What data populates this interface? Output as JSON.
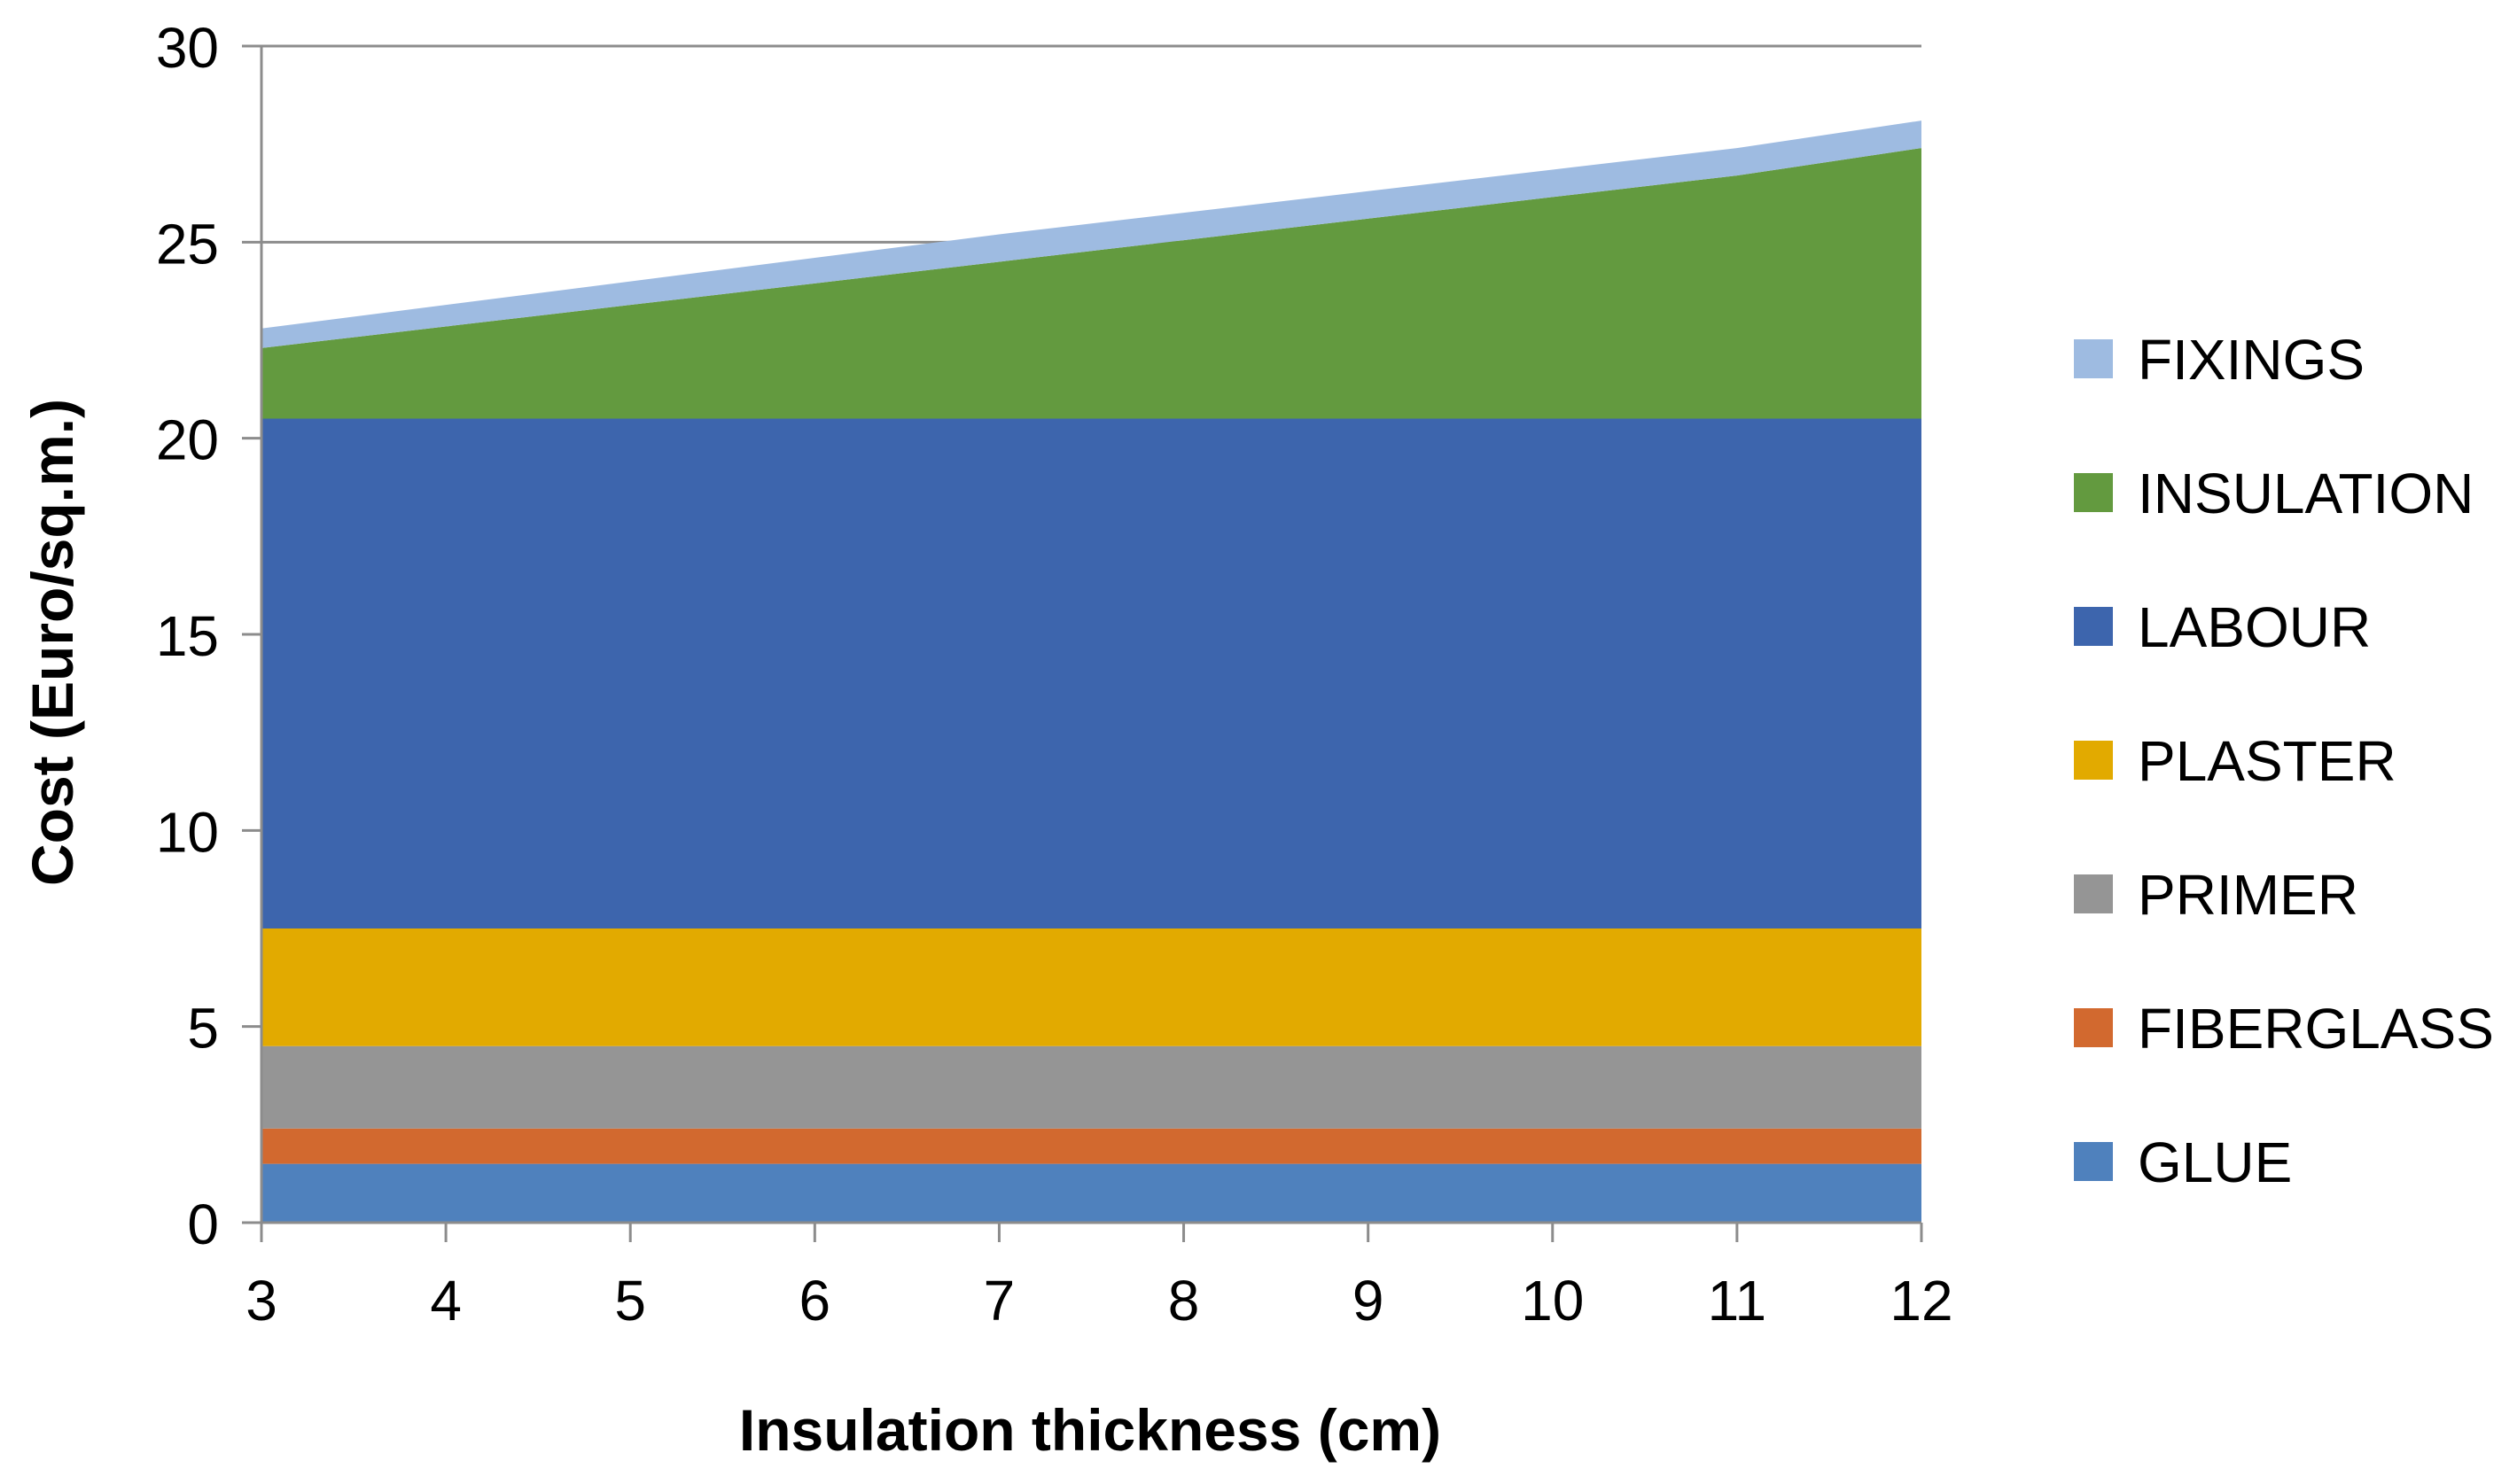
{
  "chart_data": {
    "type": "area",
    "stacked": true,
    "title": "",
    "xlabel": "Insulation thickness (cm)",
    "ylabel": "Cost (Euro/sq.m.)",
    "x": [
      3,
      4,
      5,
      6,
      7,
      8,
      9,
      10,
      11,
      12
    ],
    "xlim": [
      3,
      12
    ],
    "ylim": [
      0,
      30
    ],
    "yticks": [
      0,
      5,
      10,
      15,
      20,
      25,
      30
    ],
    "grid": "horizontal",
    "legend_position": "right",
    "series": [
      {
        "name": "GLUE",
        "color": "#4f81bd",
        "values": [
          1.5,
          1.5,
          1.5,
          1.5,
          1.5,
          1.5,
          1.5,
          1.5,
          1.5,
          1.5
        ]
      },
      {
        "name": "FIBERGLASS",
        "color": "#d2692f",
        "values": [
          0.9,
          0.9,
          0.9,
          0.9,
          0.9,
          0.9,
          0.9,
          0.9,
          0.9,
          0.9
        ]
      },
      {
        "name": "PRIMER",
        "color": "#959595",
        "values": [
          2.1,
          2.1,
          2.1,
          2.1,
          2.1,
          2.1,
          2.1,
          2.1,
          2.1,
          2.1
        ]
      },
      {
        "name": "PLASTER",
        "color": "#e2aa00",
        "values": [
          3.0,
          3.0,
          3.0,
          3.0,
          3.0,
          3.0,
          3.0,
          3.0,
          3.0,
          3.0
        ]
      },
      {
        "name": "LABOUR",
        "color": "#3d65ad",
        "values": [
          13.0,
          13.0,
          13.0,
          13.0,
          13.0,
          13.0,
          13.0,
          13.0,
          13.0,
          13.0
        ]
      },
      {
        "name": "INSULATION",
        "color": "#639a3f",
        "values": [
          1.8,
          2.35,
          2.9,
          3.45,
          4.0,
          4.55,
          5.1,
          5.65,
          6.2,
          6.9
        ]
      },
      {
        "name": "FIXINGS",
        "color": "#9ebbe1",
        "values": [
          0.5,
          0.55,
          0.6,
          0.65,
          0.7,
          0.7,
          0.7,
          0.7,
          0.7,
          0.7
        ]
      }
    ]
  }
}
